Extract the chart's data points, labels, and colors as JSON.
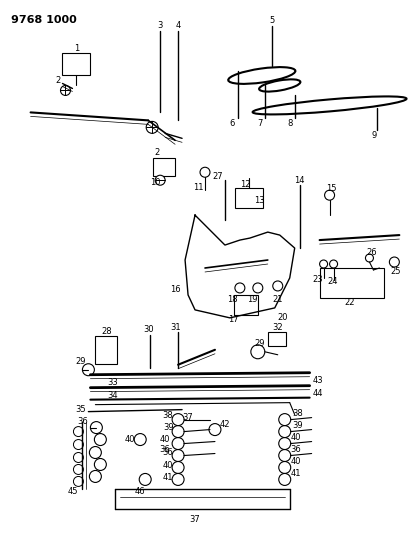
{
  "title": "9768 1000",
  "bg": "#ffffff",
  "lc": "#000000",
  "fig_w": 4.12,
  "fig_h": 5.33,
  "dpi": 100
}
